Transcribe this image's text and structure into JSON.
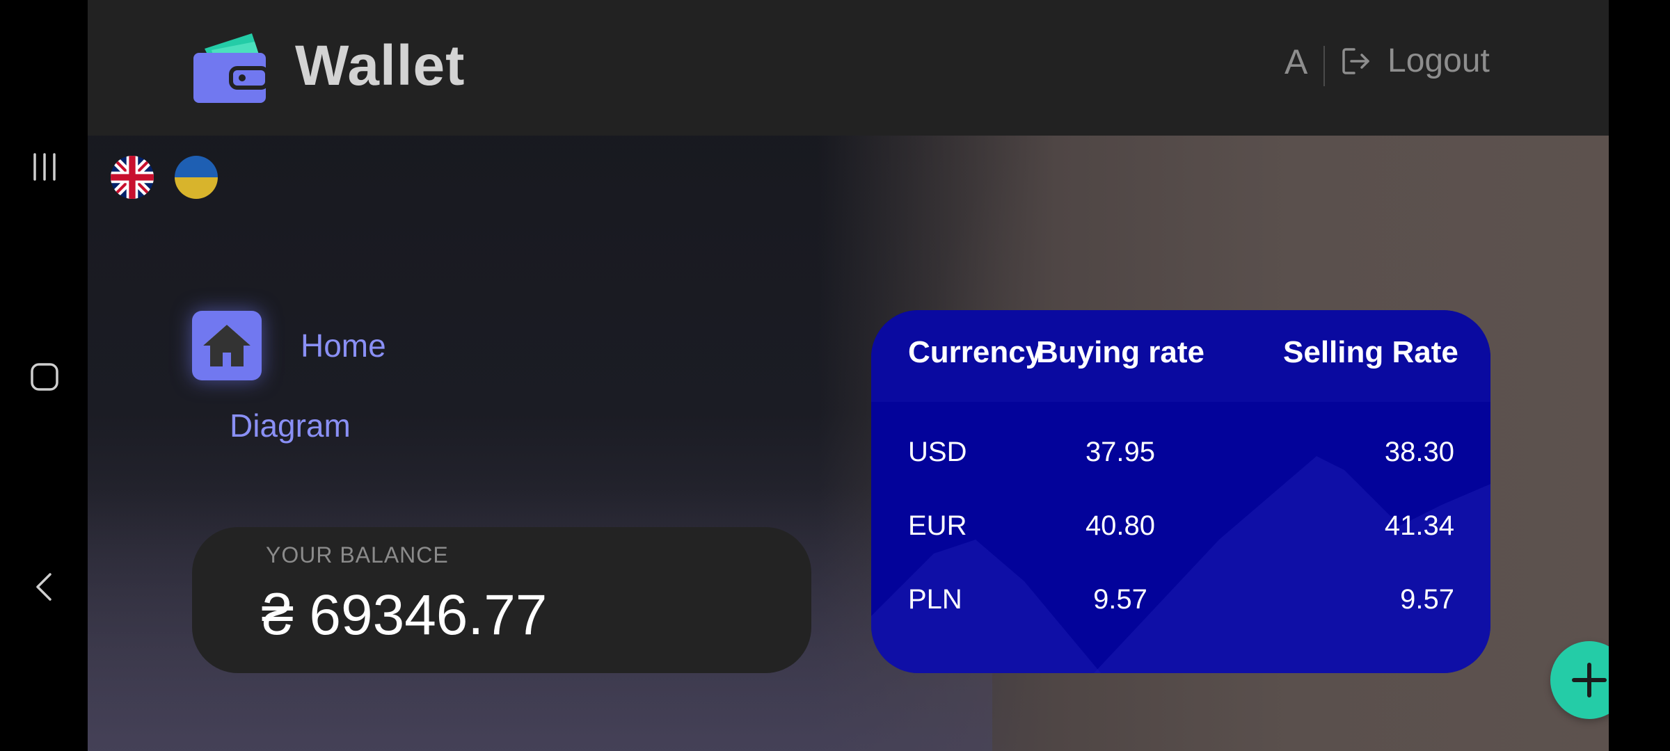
{
  "app": {
    "title": "Wallet",
    "user_initial": "A",
    "logout_label": "Logout"
  },
  "languages": [
    {
      "code": "en",
      "icon": "uk-flag-icon"
    },
    {
      "code": "uk",
      "icon": "ukraine-flag-icon"
    }
  ],
  "menu": {
    "home_label": "Home",
    "diagram_label": "Diagram"
  },
  "balance": {
    "label": "YOUR BALANCE",
    "value": "₴ 69346.77"
  },
  "rates": {
    "headers": {
      "currency": "Currency",
      "buying": "Buying rate",
      "selling": "Selling Rate"
    },
    "rows": [
      {
        "currency": "USD",
        "buying": "37.95",
        "selling": "38.30"
      },
      {
        "currency": "EUR",
        "buying": "40.80",
        "selling": "41.34"
      },
      {
        "currency": "PLN",
        "buying": "9.57",
        "selling": "9.57"
      }
    ]
  },
  "colors": {
    "accent": "#7178f0",
    "fab": "#24cca7",
    "rates_card": "#03039a",
    "header_bg": "#222222"
  },
  "icons": {
    "nav_recents": "recents-icon",
    "nav_home": "home-nav-icon",
    "nav_back": "back-icon",
    "logo": "wallet-icon",
    "logout": "logout-icon",
    "home": "home-icon",
    "fab": "plus-icon"
  }
}
